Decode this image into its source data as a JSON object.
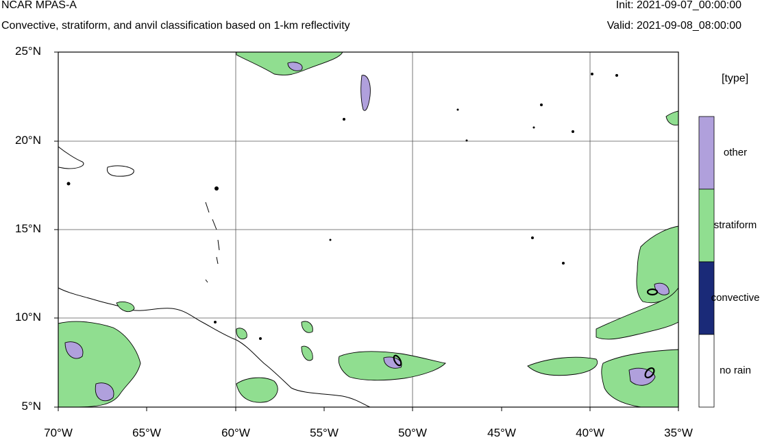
{
  "header": {
    "title": "NCAR MPAS-A",
    "subtitle": "Convective, stratiform, and anvil classification based on 1-km reflectivity",
    "init": "Init: 2021-09-07_00:00:00",
    "valid": "Valid: 2021-09-08_08:00:00"
  },
  "map": {
    "lat_labels": [
      "25°N",
      "20°N",
      "15°N",
      "10°N",
      "5°N"
    ],
    "lon_labels": [
      "70°W",
      "65°W",
      "60°W",
      "55°W",
      "50°W",
      "45°W",
      "40°W",
      "35°W"
    ],
    "grid": true,
    "colors": {
      "stratiform": "#90de90",
      "other": "#b0a0dc",
      "convective": "#1a2a78",
      "land": "#000000"
    }
  },
  "legend": {
    "title": "[type]",
    "entries": [
      {
        "label": "other",
        "color": "#b0a0dc"
      },
      {
        "label": "stratiform",
        "color": "#90de90"
      },
      {
        "label": "convective",
        "color": "#1a2a78"
      },
      {
        "label": "no rain",
        "color": "#ffffff"
      }
    ]
  }
}
